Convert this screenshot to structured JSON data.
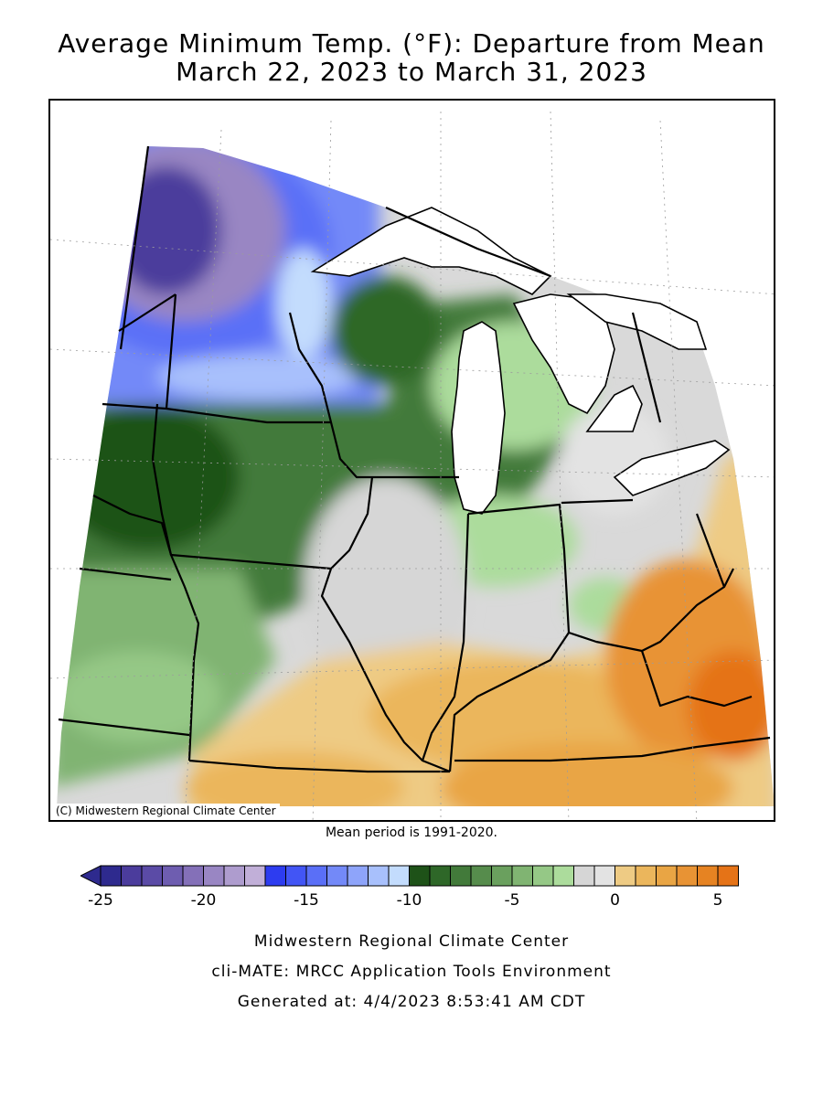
{
  "title": {
    "line1": "Average Minimum Temp. (°F): Departure from Mean",
    "line2": "March 22, 2023 to March 31, 2023"
  },
  "map": {
    "credit": "(C) Midwestern Regional Climate Center",
    "mean_note": "Mean period is 1991-2020."
  },
  "legend": {
    "colors": [
      "#2e2a8e",
      "#4b3c9c",
      "#5b4ba6",
      "#6e5db0",
      "#8470b8",
      "#9986c3",
      "#ae9cce",
      "#c1afd8",
      "#2d3cf0",
      "#4255f5",
      "#5a6ff7",
      "#7389f8",
      "#8ea4fa",
      "#a8c0fc",
      "#c3dcfd",
      "#1e5218",
      "#2e6728",
      "#427a3a",
      "#568c4c",
      "#6aa05e",
      "#80b472",
      "#95c886",
      "#acdc9c",
      "#d6d6d6",
      "#e3e3e3",
      "#eecb84",
      "#ebb65c",
      "#e9a544",
      "#e89334",
      "#e68322",
      "#e57317"
    ],
    "ticks": [
      {
        "label": "-25",
        "value": -25
      },
      {
        "label": "-20",
        "value": -20
      },
      {
        "label": "-15",
        "value": -15
      },
      {
        "label": "-10",
        "value": -10
      },
      {
        "label": "-5",
        "value": -5
      },
      {
        "label": "0",
        "value": 0
      },
      {
        "label": "5",
        "value": 5
      }
    ]
  },
  "footer": {
    "line1": "Midwestern Regional Climate Center",
    "line2": "cli-MATE: MRCC Application Tools Environment",
    "line3": "Generated at: 4/4/2023 8:53:41 AM CDT"
  }
}
